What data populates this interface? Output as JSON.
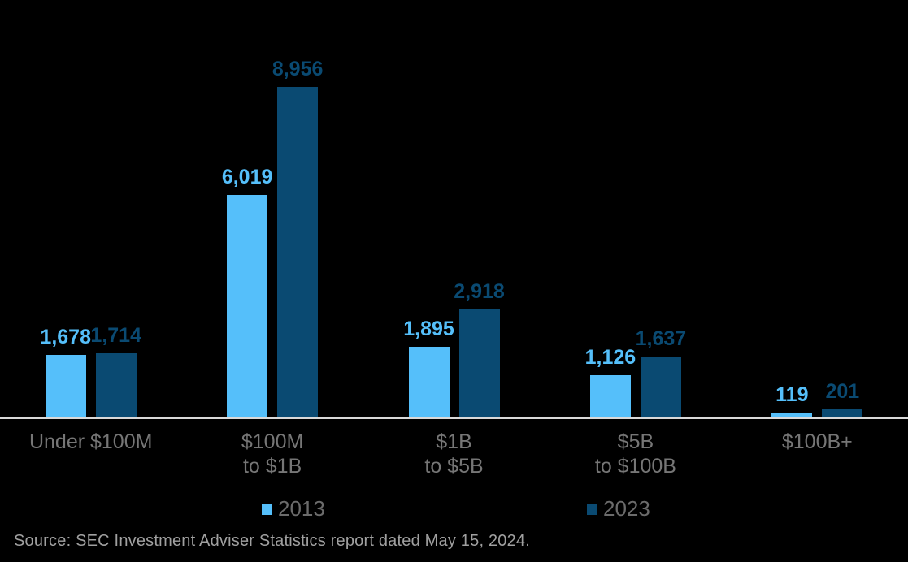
{
  "chart_data": {
    "type": "bar",
    "title": "",
    "xlabel": "",
    "ylabel": "",
    "ylim": [
      0,
      8956
    ],
    "grid": false,
    "legend_position": "bottom",
    "axis_line_color": "#D9D9D9",
    "background_color": "#000000",
    "categories": [
      {
        "lines": [
          "Under $100M"
        ]
      },
      {
        "lines": [
          "$100M",
          "to $1B"
        ]
      },
      {
        "lines": [
          "$1B",
          "to $5B"
        ]
      },
      {
        "lines": [
          "$5B",
          "to $100B"
        ]
      },
      {
        "lines": [
          "$100B+"
        ]
      }
    ],
    "series": [
      {
        "name": "2013",
        "color": "#55BFFA",
        "values": [
          1678,
          6019,
          1895,
          1126,
          119
        ],
        "labels": [
          "1,678",
          "6,019",
          "1,895",
          "1,126",
          "119"
        ]
      },
      {
        "name": "2023",
        "color": "#0A4A72",
        "values": [
          1714,
          8956,
          2918,
          1637,
          201
        ],
        "labels": [
          "1,714",
          "8,956",
          "2,918",
          "1,637",
          "201"
        ]
      }
    ]
  },
  "legend": {
    "items": [
      {
        "label": "2013",
        "color": "#55BFFA"
      },
      {
        "label": "2023",
        "color": "#0A4A72"
      }
    ]
  },
  "source": {
    "text": "Source: SEC Investment Adviser Statistics report dated May 15, 2024."
  },
  "colors": {
    "background": "#000000",
    "axis_line": "#D9D9D9",
    "category_text": "#767676",
    "legend_text": "#6B6B6B",
    "source_text": "#A0A0A0"
  }
}
